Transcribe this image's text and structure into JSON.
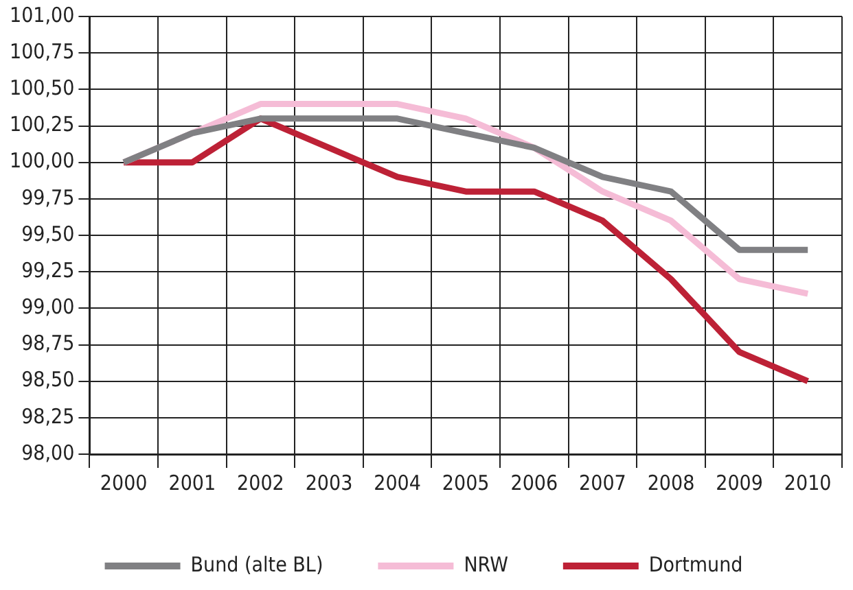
{
  "chart_data": {
    "type": "line",
    "categories": [
      "2000",
      "2001",
      "2002",
      "2003",
      "2004",
      "2005",
      "2006",
      "2007",
      "2008",
      "2009",
      "2010"
    ],
    "series": [
      {
        "name": "Bund (alte BL)",
        "color": "#808083",
        "values": [
          100.0,
          100.2,
          100.3,
          100.3,
          100.3,
          100.2,
          100.1,
          99.9,
          99.8,
          99.4,
          99.4
        ]
      },
      {
        "name": "NRW",
        "color": "#f5bcd6",
        "values": [
          100.0,
          100.2,
          100.4,
          100.4,
          100.4,
          100.3,
          100.1,
          99.8,
          99.6,
          99.2,
          99.1
        ]
      },
      {
        "name": "Dortmund",
        "color": "#bd2136",
        "values": [
          100.0,
          100.0,
          100.3,
          100.1,
          99.9,
          99.8,
          99.8,
          99.6,
          99.2,
          98.7,
          98.5
        ]
      }
    ],
    "ylim": [
      98,
      101
    ],
    "yticks": [
      {
        "value": 98,
        "label": "98,00"
      },
      {
        "value": 98.25,
        "label": "98,25"
      },
      {
        "value": 98.5,
        "label": "98,50"
      },
      {
        "value": 98.75,
        "label": "98,75"
      },
      {
        "value": 99,
        "label": "99,00"
      },
      {
        "value": 99.25,
        "label": "99,25"
      },
      {
        "value": 99.5,
        "label": "99,50"
      },
      {
        "value": 99.75,
        "label": "99,75"
      },
      {
        "value": 100,
        "label": "100,00"
      },
      {
        "value": 100.25,
        "label": "100,25"
      },
      {
        "value": 100.5,
        "label": "100,50"
      },
      {
        "value": 100.75,
        "label": "100,75"
      },
      {
        "value": 101,
        "label": "101,00"
      }
    ],
    "grid": true,
    "legend": "bottom",
    "marker": "none",
    "line_style": "solid"
  }
}
